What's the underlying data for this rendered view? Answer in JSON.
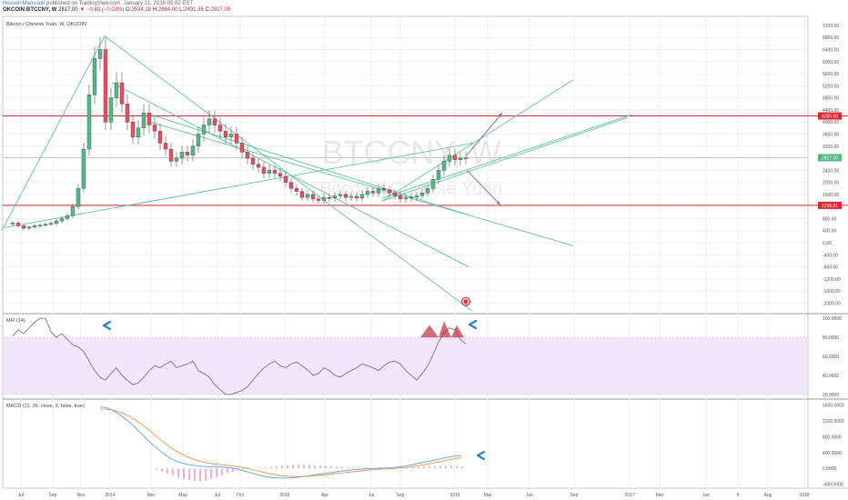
{
  "header": {
    "author": "HosseinMansouri",
    "published_text": "published on TradingView.com, January 21, 2016 05:02 EST",
    "symbol_line": "OKCOIN:BTCCNY, W",
    "last": "2817.00",
    "change": "▼ −0.83 (−0.03%)",
    "o_label": "O:",
    "o_value": "2534.18",
    "h_label": "H:",
    "h_value": "2884.00",
    "l_label": "L:",
    "l_value": "2491.35",
    "c_label": "C:",
    "c_value": "2817.00"
  },
  "colors": {
    "up": "#53b987",
    "down": "#eb4d5c",
    "hline": "#e0262f",
    "trend": "#63c2a7",
    "arrow": "#8a6cc6",
    "mfi": "#777777",
    "mfi_band": "#f1e7fb",
    "macd": "#5aa3e8",
    "signal": "#f2904a",
    "hist": "#e06b9a",
    "note_arrow": "#2f7fc8",
    "triangle": "#c0394b"
  },
  "chart_data": [
    {
      "type": "candlestick",
      "title": "Bitcoin / Chinese Yuan, W, OKCOIN",
      "watermark": "BTCCNY, W",
      "watermark_sub": "Bitcoin / Chinese Yuan",
      "x_ticks": [
        "Jul",
        "Sep",
        "Nov",
        "2014",
        "Mar",
        "May",
        "Jul",
        "Oct",
        "2015",
        "Apr",
        "Jul",
        "Sep",
        "2016",
        "Mar",
        "Jun",
        "Sep",
        "2017",
        "Mar",
        "Jun",
        "9",
        "Aug",
        "2018"
      ],
      "y_ticks": [
        "7200.00",
        "6800.00",
        "6400.00",
        "6000.00",
        "5600.00",
        "5200.00",
        "4800.00",
        "4400.00",
        "4000.00",
        "3600.00",
        "3200.00",
        "2800.00",
        "2400.00",
        "2000.00",
        "1600.00",
        "1200.00",
        "800.00",
        "400.00",
        "0.00",
        "-400.00",
        "-800.00",
        "-1200.00",
        "-1600.00",
        "-2000.00"
      ],
      "ylim": [
        -2350,
        7500
      ],
      "price_tags": [
        {
          "label": "4200.00",
          "value": 4200,
          "kind": "line"
        },
        {
          "label": "2817.00",
          "value": 2817,
          "kind": "price"
        },
        {
          "label": "1238.01",
          "value": 1238,
          "kind": "line"
        }
      ],
      "hlines": [
        4200,
        1238
      ],
      "closes": [
        650,
        560,
        480,
        520,
        560,
        580,
        610,
        640,
        720,
        800,
        900,
        1200,
        1800,
        3100,
        4900,
        6100,
        6400,
        4000,
        4800,
        5300,
        4600,
        4000,
        3500,
        3800,
        4300,
        3900,
        3700,
        3300,
        3100,
        2700,
        2800,
        3000,
        2900,
        3200,
        3600,
        3900,
        4100,
        3900,
        3700,
        3500,
        3600,
        3300,
        3000,
        2800,
        2600,
        2500,
        2300,
        2400,
        2300,
        2200,
        2000,
        1800,
        1700,
        1500,
        1600,
        1450,
        1400,
        1500,
        1480,
        1550,
        1600,
        1500,
        1540,
        1480,
        1600,
        1700,
        1650,
        1800,
        1750,
        1650,
        1550,
        1450,
        1480,
        1520,
        1560,
        1650,
        1800,
        2100,
        2400,
        2700,
        2900,
        2750,
        2800,
        2817
      ]
    },
    {
      "type": "line",
      "title": "MFI (14)",
      "y_ticks": [
        "100.0000",
        "80.0000",
        "60.0000",
        "40.0000",
        "20.0000"
      ],
      "band": [
        20,
        80
      ],
      "ylim": [
        15,
        105
      ],
      "values": [
        82,
        88,
        84,
        90,
        96,
        100,
        100,
        86,
        80,
        84,
        78,
        72,
        70,
        65,
        55,
        45,
        38,
        35,
        42,
        48,
        40,
        35,
        30,
        32,
        38,
        45,
        50,
        48,
        52,
        55,
        48,
        50,
        52,
        55,
        45,
        42,
        38,
        30,
        25,
        20,
        20,
        22,
        24,
        28,
        35,
        42,
        48,
        52,
        55,
        50,
        48,
        52,
        54,
        50,
        46,
        40,
        42,
        48,
        45,
        40,
        38,
        42,
        45,
        48,
        52,
        50,
        48,
        45,
        50,
        54,
        55,
        52,
        45,
        40,
        35,
        42,
        50,
        62,
        75,
        85,
        90,
        88,
        78,
        73
      ]
    },
    {
      "type": "line",
      "title": "MACD (12, 26, close, 9, false, true)",
      "y_ticks": [
        "1600.0000",
        "1200.0000",
        "800.0000",
        "400.0000",
        "0.0000",
        "-400.0000"
      ],
      "ylim": [
        -500,
        1750
      ],
      "series": [
        {
          "name": "MACD",
          "values": [
            1550,
            1540,
            1480,
            1400,
            1300,
            1180,
            1050,
            900,
            760,
            620,
            500,
            380,
            280,
            200,
            150,
            110,
            80,
            60,
            50,
            45,
            40,
            35,
            25,
            10,
            -20,
            -60,
            -100,
            -140,
            -180,
            -210,
            -230,
            -240,
            -245,
            -240,
            -230,
            -215,
            -195,
            -175,
            -150,
            -130,
            -110,
            -90,
            -70,
            -55,
            -40,
            -25,
            -15,
            -5,
            0,
            5,
            10,
            20,
            35,
            55,
            80,
            110,
            140,
            170,
            200,
            230,
            260,
            290,
            310,
            320
          ]
        },
        {
          "name": "Signal",
          "values": [
            1500,
            1500,
            1480,
            1440,
            1390,
            1320,
            1240,
            1140,
            1030,
            910,
            790,
            670,
            560,
            460,
            380,
            310,
            250,
            200,
            160,
            130,
            110,
            95,
            80,
            65,
            45,
            20,
            -10,
            -45,
            -80,
            -115,
            -145,
            -170,
            -190,
            -200,
            -205,
            -205,
            -200,
            -190,
            -178,
            -165,
            -150,
            -135,
            -118,
            -102,
            -86,
            -70,
            -55,
            -40,
            -28,
            -18,
            -10,
            -2,
            8,
            20,
            36,
            56,
            80,
            105,
            132,
            160,
            190,
            220,
            248,
            270
          ]
        }
      ],
      "histogram": [
        0,
        0,
        0,
        0,
        0,
        0,
        0,
        -40,
        -80,
        -130,
        -180,
        -230,
        -270,
        -300,
        -320,
        -330,
        -310,
        -270,
        -220,
        -170,
        -120,
        -80,
        -40,
        -20,
        -10,
        0,
        10,
        25,
        40,
        55,
        70,
        80,
        90,
        95,
        95,
        90,
        80,
        70,
        60,
        50,
        40,
        30,
        25,
        20,
        15,
        12,
        10,
        10,
        12,
        15,
        18,
        20,
        25,
        30,
        35,
        40,
        45,
        50,
        55,
        60,
        65,
        60,
        55,
        50
      ]
    }
  ]
}
